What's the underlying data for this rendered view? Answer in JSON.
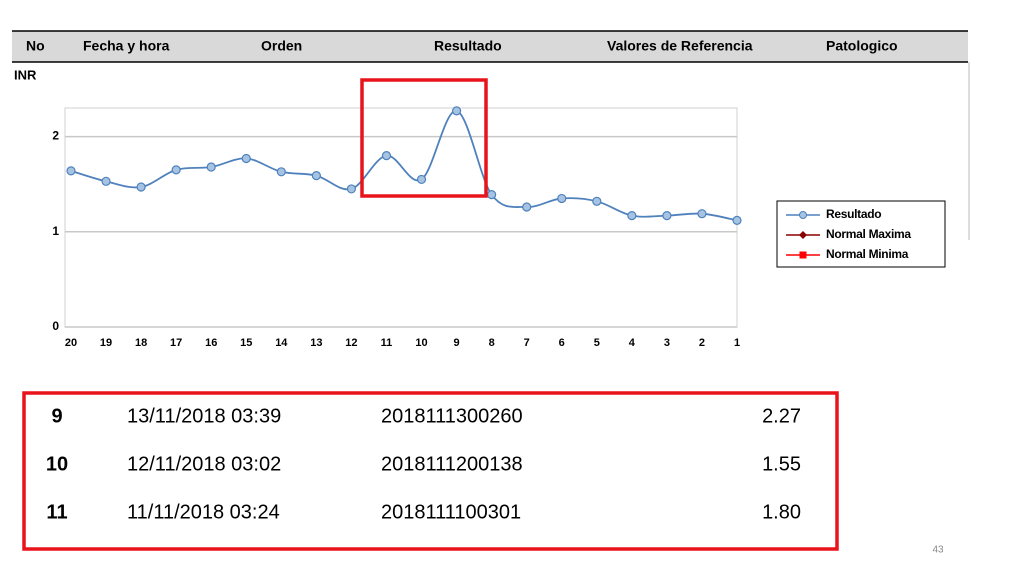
{
  "header": {
    "columns": [
      "No",
      "Fecha y hora",
      "Orden",
      "Resultado",
      "Valores de Referencia",
      "Patologico"
    ]
  },
  "chart_data": {
    "type": "line",
    "y_label": "INR",
    "categories": [
      "20",
      "19",
      "18",
      "17",
      "16",
      "15",
      "14",
      "13",
      "12",
      "11",
      "10",
      "9",
      "8",
      "7",
      "6",
      "5",
      "4",
      "3",
      "2",
      "1"
    ],
    "series": [
      {
        "name": "Resultado",
        "color": "#4f81bd",
        "values": [
          1.64,
          1.53,
          1.47,
          1.65,
          1.68,
          1.77,
          1.63,
          1.59,
          1.45,
          1.8,
          1.55,
          2.27,
          1.39,
          1.26,
          1.35,
          1.32,
          1.17,
          1.17,
          1.19,
          1.12
        ]
      },
      {
        "name": "Normal Maxima",
        "color": "#8b0000"
      },
      {
        "name": "Normal Minima",
        "color": "#ff0000"
      }
    ],
    "ylim": [
      0,
      2.3
    ],
    "yticks": [
      0,
      1,
      2
    ],
    "grid": true
  },
  "table": {
    "rows": [
      [
        "9",
        "13/11/2018 03:39",
        "2018111300260",
        "2.27"
      ],
      [
        "10",
        "12/11/2018 03:02",
        "2018111200138",
        "1.55"
      ],
      [
        "11",
        "11/11/2018 03:24",
        "2018111100301",
        "1.80"
      ]
    ]
  },
  "slide_number": "43"
}
